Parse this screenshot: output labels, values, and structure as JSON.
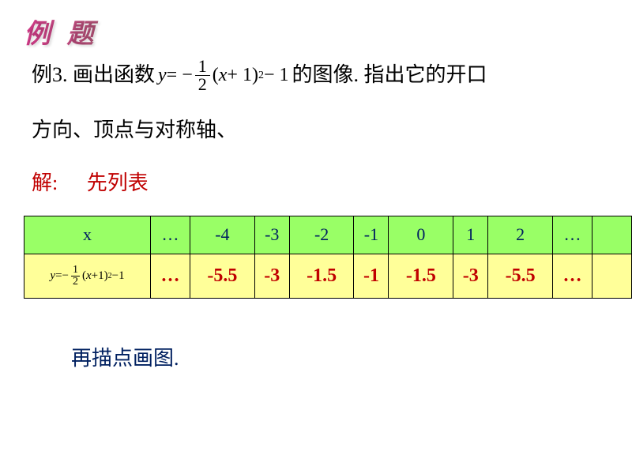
{
  "title": "例 题",
  "problem": {
    "prefix": "例3. 画出函数",
    "formula_y": "y",
    "formula_eq": " = −",
    "formula_frac_num": "1",
    "formula_frac_den": "2",
    "formula_paren": "(x + 1)",
    "formula_exp": "2",
    "formula_tail": " − 1",
    "suffix": "的图像. 指出它的开口",
    "line2": "方向、顶点与对称轴、"
  },
  "solution": {
    "label": "解:",
    "text": "先列表"
  },
  "table": {
    "header_row": {
      "label": "x",
      "cells": [
        "…",
        "-4",
        "-3",
        "-2",
        "-1",
        "0",
        "1",
        "2",
        "…",
        ""
      ]
    },
    "value_row": {
      "formula_y": "y",
      "formula_eq": "=−",
      "formula_frac_num": "1",
      "formula_frac_den": "2",
      "formula_paren": "(x+1)",
      "formula_exp": "2",
      "formula_tail": "−1",
      "cells": [
        "…",
        "-5.5",
        "-3",
        "-1.5",
        "-1",
        "-1.5",
        "-3",
        "-5.5",
        "…",
        ""
      ]
    }
  },
  "footer": "再描点画图.",
  "colors": {
    "header_bg": "#99ff66",
    "row_bg": "#ffff99",
    "header_text": "#002060",
    "value_text": "#c00000",
    "solution_text": "#c00000",
    "footer_text": "#002060"
  }
}
